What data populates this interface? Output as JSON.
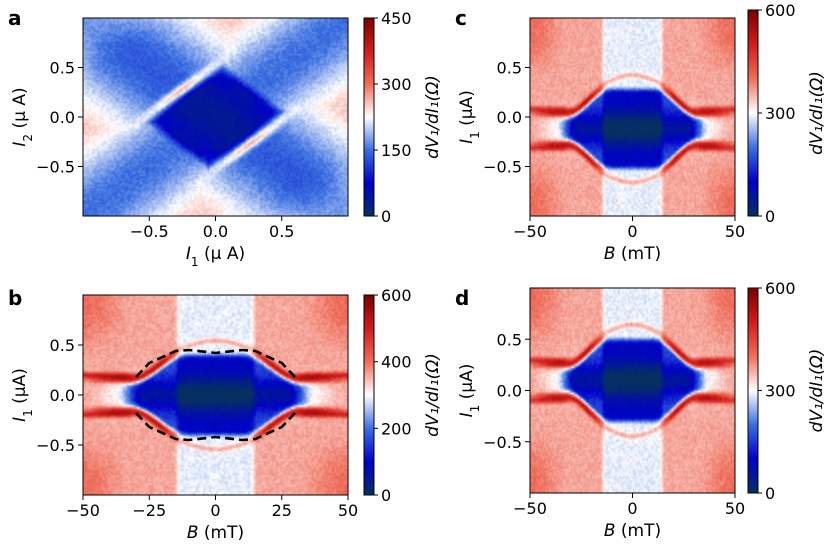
{
  "chart_data": [
    {
      "panel_label": "a",
      "type": "heatmap",
      "x": {
        "label_main": "I",
        "label_sub": "1",
        "label_unit": " (μ A)",
        "range": [
          -1.0,
          1.0
        ],
        "ticks": [
          -0.5,
          0.0,
          0.5
        ],
        "tick_labels": [
          "−0.5",
          "0.0",
          "0.5"
        ]
      },
      "y": {
        "label_main": "I",
        "label_sub": "2",
        "label_unit": " (μ A)",
        "range": [
          -1.0,
          1.0
        ],
        "ticks": [
          -0.5,
          0.0,
          0.5
        ],
        "tick_labels": [
          "−0.5",
          "0.0",
          "0.5"
        ]
      },
      "colorbar": {
        "label": "dV₁/dI₁(Ω)",
        "range": [
          0,
          450
        ],
        "ticks": [
          0,
          150,
          300,
          450
        ],
        "tick_labels": [
          "0",
          "150",
          "300",
          "450"
        ]
      },
      "pattern": "diagonal"
    },
    {
      "panel_label": "b",
      "type": "heatmap",
      "x": {
        "label_main": "B",
        "label_sub": "",
        "label_unit": " (mT)",
        "range": [
          -50,
          50
        ],
        "ticks": [
          -50,
          -25,
          0,
          25,
          50
        ],
        "tick_labels": [
          "−50",
          "−25",
          "0",
          "25",
          "50"
        ]
      },
      "y": {
        "label_main": "I",
        "label_sub": "1",
        "label_unit": " (μA)",
        "range": [
          -1.0,
          1.0
        ],
        "ticks": [
          -0.5,
          0.0,
          0.5
        ],
        "tick_labels": [
          "−0.5",
          "0.0",
          "0.5"
        ]
      },
      "colorbar": {
        "label": "dV₁/dI₁(Ω)",
        "range": [
          0,
          600
        ],
        "ticks": [
          0,
          200,
          400,
          600
        ],
        "tick_labels": [
          "0",
          "200",
          "400",
          "600"
        ]
      },
      "pattern": "cross-symmetric",
      "overlay_dashed": {
        "upper": [
          [
            -30,
            0.18
          ],
          [
            -25,
            0.32
          ],
          [
            -15,
            0.44
          ],
          [
            -10,
            0.45
          ],
          [
            0,
            0.42
          ],
          [
            10,
            0.45
          ],
          [
            15,
            0.44
          ],
          [
            25,
            0.32
          ],
          [
            30,
            0.18
          ]
        ],
        "lower": [
          [
            -30,
            -0.18
          ],
          [
            -25,
            -0.32
          ],
          [
            -15,
            -0.44
          ],
          [
            -10,
            -0.45
          ],
          [
            0,
            -0.42
          ],
          [
            10,
            -0.45
          ],
          [
            15,
            -0.44
          ],
          [
            25,
            -0.32
          ],
          [
            30,
            -0.18
          ]
        ]
      }
    },
    {
      "panel_label": "c",
      "type": "heatmap",
      "x": {
        "label_main": "B",
        "label_sub": "",
        "label_unit": " (mT)",
        "range": [
          -50,
          50
        ],
        "ticks": [
          -50,
          0,
          50
        ],
        "tick_labels": [
          "−50",
          "0",
          "50"
        ]
      },
      "y": {
        "label_main": "I",
        "label_sub": "1",
        "label_unit": " (μA)",
        "range": [
          -1.0,
          1.0
        ],
        "ticks": [
          -0.5,
          0.0,
          0.5
        ],
        "tick_labels": [
          "−0.5",
          "0.0",
          "0.5"
        ]
      },
      "colorbar": {
        "label": "dV₁/dI₁(Ω)",
        "range": [
          0,
          600
        ],
        "ticks": [
          0,
          300,
          600
        ],
        "tick_labels": [
          "0",
          "300",
          "600"
        ]
      },
      "pattern": "cross-shifted-down"
    },
    {
      "panel_label": "d",
      "type": "heatmap",
      "x": {
        "label_main": "B",
        "label_sub": "",
        "label_unit": " (mT)",
        "range": [
          -50,
          50
        ],
        "ticks": [
          -50,
          0,
          50
        ],
        "tick_labels": [
          "−50",
          "0",
          "50"
        ]
      },
      "y": {
        "label_main": "I",
        "label_sub": "1",
        "label_unit": " (μA)",
        "range": [
          -1.0,
          1.0
        ],
        "ticks": [
          -0.5,
          0.0,
          0.5
        ],
        "tick_labels": [
          "−0.5",
          "0.0",
          "0.5"
        ]
      },
      "colorbar": {
        "label": "dV₁/dI₁(Ω)",
        "range": [
          0,
          600
        ],
        "ticks": [
          0,
          300,
          600
        ],
        "tick_labels": [
          "0",
          "300",
          "600"
        ]
      },
      "pattern": "cross-shifted-up"
    }
  ],
  "colors": {
    "cmap": [
      "#053061",
      "#0000c8",
      "#3b6fe0",
      "#ffffff",
      "#ef6d5a",
      "#d01c1c",
      "#7a0000"
    ]
  }
}
